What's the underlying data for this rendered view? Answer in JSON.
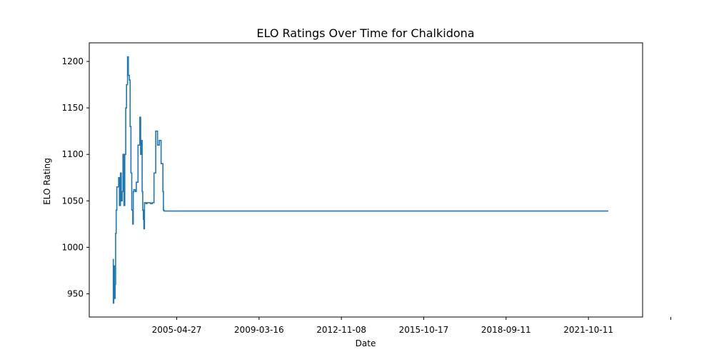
{
  "chart_data": {
    "type": "line",
    "title": "ELO Ratings Over Time for Chalkidona",
    "xlabel": "Date",
    "ylabel": "ELO Rating",
    "x_ticks": [
      "2005-04-27",
      "2009-03-16",
      "2012-11-08",
      "2015-10-17",
      "2018-09-11",
      "2021-10-11",
      ""
    ],
    "y_ticks": [
      950,
      1000,
      1050,
      1100,
      1150,
      1200
    ],
    "xlim": [
      "2001-03-13",
      "2027-04-15"
    ],
    "ylim": [
      925,
      1220
    ],
    "grid": false,
    "legend": "none",
    "color": "#1f77b4",
    "series": [
      {
        "x": [
          "2002-04-20",
          "2002-05-01",
          "2002-05-10",
          "2002-05-20",
          "2002-06-01",
          "2002-06-10",
          "2002-06-20",
          "2002-07-01",
          "2002-08-01",
          "2002-08-15",
          "2002-09-01",
          "2002-09-15",
          "2002-10-01",
          "2002-10-15",
          "2002-11-01",
          "2002-11-15",
          "2002-12-01",
          "2002-12-15",
          "2003-01-01",
          "2003-01-15",
          "2003-02-01",
          "2003-02-15",
          "2003-03-01",
          "2003-03-15",
          "2003-04-01",
          "2003-04-10",
          "2003-04-20",
          "2003-05-01",
          "2003-05-15",
          "2003-06-01",
          "2003-07-01",
          "2003-08-01",
          "2003-08-15",
          "2003-09-01",
          "2003-09-10",
          "2003-09-20",
          "2003-10-01",
          "2003-10-10",
          "2003-10-20",
          "2003-11-01",
          "2003-11-15",
          "2003-12-01",
          "2004-01-01",
          "2004-02-01",
          "2004-03-01",
          "2004-04-01",
          "2004-05-01",
          "2004-06-01",
          "2004-07-01",
          "2004-08-01",
          "2004-09-01",
          "2004-09-10",
          "2004-09-20",
          "2004-10-01",
          "2004-10-10",
          "2004-10-20",
          "2004-11-01",
          "2004-11-15",
          "2004-12-01",
          "2004-12-15",
          "2005-01-01",
          "2005-01-15",
          "2005-02-01",
          "2005-03-01",
          "2005-04-01",
          "2005-04-15",
          "2005-05-01",
          "2005-05-15",
          "2005-06-01",
          "2005-06-15",
          "2005-07-01",
          "2005-07-15",
          "2005-08-01",
          "2005-08-15",
          "2005-09-01",
          "2005-09-15",
          "2005-10-01",
          "2025-09-01"
        ],
        "y": [
          987,
          940,
          980,
          945,
          960,
          1015,
          1040,
          1065,
          1075,
          1045,
          1080,
          1050,
          1060,
          1100,
          1045,
          1100,
          1150,
          1175,
          1205,
          1185,
          1180,
          1130,
          1080,
          1040,
          1025,
          1060,
          1062,
          1062,
          1060,
          1070,
          1110,
          1140,
          1100,
          1115,
          1060,
          1040,
          1030,
          1020,
          1048,
          1048,
          1047,
          1048,
          1048,
          1047,
          1048,
          1080,
          1125,
          1110,
          1115,
          1090,
          1060,
          1040,
          1039,
          1039,
          1039,
          1039,
          1039,
          1039,
          1039,
          1039,
          1039,
          1039,
          1039,
          1039,
          1039,
          1039,
          1039,
          1039,
          1039,
          1039,
          1039,
          1039,
          1039,
          1039,
          1039,
          1039,
          1039,
          1039
        ]
      }
    ]
  }
}
